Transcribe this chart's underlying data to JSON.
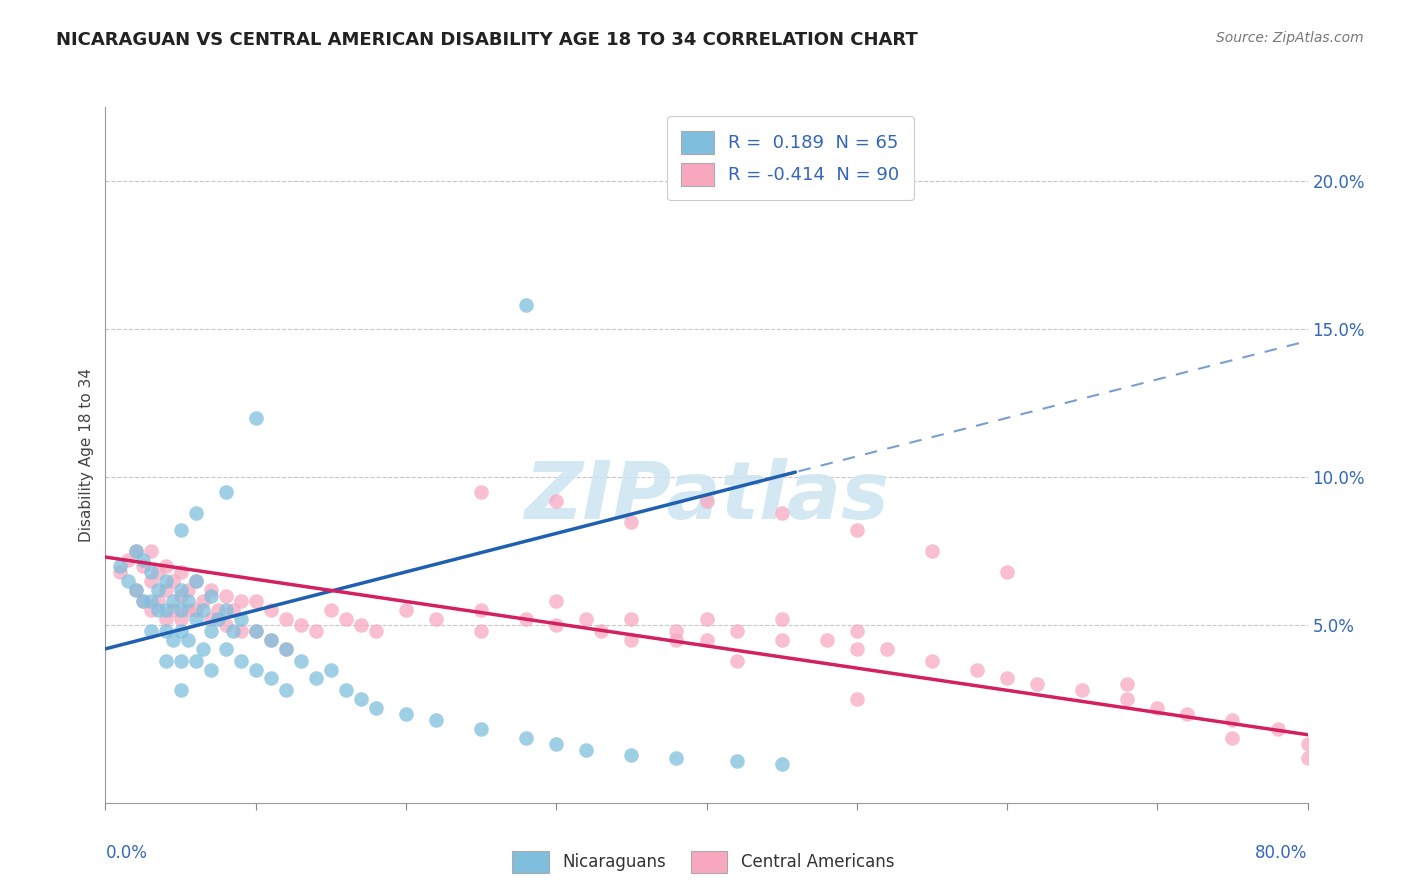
{
  "title": "NICARAGUAN VS CENTRAL AMERICAN DISABILITY AGE 18 TO 34 CORRELATION CHART",
  "source": "Source: ZipAtlas.com",
  "ylabel": "Disability Age 18 to 34",
  "ytick_labels": [
    "5.0%",
    "10.0%",
    "15.0%",
    "20.0%"
  ],
  "ytick_values": [
    0.05,
    0.1,
    0.15,
    0.2
  ],
  "xlim": [
    0.0,
    0.8
  ],
  "ylim": [
    -0.01,
    0.225
  ],
  "legend_r1": "R =  0.189  N = 65",
  "legend_r2": "R = -0.414  N = 90",
  "blue_color": "#7fbfdd",
  "pink_color": "#f7a8bf",
  "blue_line_color": "#2060b0",
  "pink_line_color": "#d42060",
  "nic_x": [
    0.01,
    0.015,
    0.02,
    0.02,
    0.025,
    0.025,
    0.03,
    0.03,
    0.03,
    0.035,
    0.035,
    0.04,
    0.04,
    0.04,
    0.04,
    0.045,
    0.045,
    0.05,
    0.05,
    0.05,
    0.05,
    0.05,
    0.055,
    0.055,
    0.06,
    0.06,
    0.06,
    0.065,
    0.065,
    0.07,
    0.07,
    0.07,
    0.075,
    0.08,
    0.08,
    0.085,
    0.09,
    0.09,
    0.1,
    0.1,
    0.11,
    0.11,
    0.12,
    0.12,
    0.13,
    0.14,
    0.15,
    0.16,
    0.17,
    0.18,
    0.2,
    0.22,
    0.25,
    0.28,
    0.3,
    0.32,
    0.35,
    0.38,
    0.42,
    0.45,
    0.28,
    0.1,
    0.08,
    0.06,
    0.05
  ],
  "nic_y": [
    0.07,
    0.065,
    0.075,
    0.062,
    0.072,
    0.058,
    0.068,
    0.058,
    0.048,
    0.062,
    0.055,
    0.065,
    0.055,
    0.048,
    0.038,
    0.058,
    0.045,
    0.062,
    0.055,
    0.048,
    0.038,
    0.028,
    0.058,
    0.045,
    0.065,
    0.052,
    0.038,
    0.055,
    0.042,
    0.06,
    0.048,
    0.035,
    0.052,
    0.055,
    0.042,
    0.048,
    0.052,
    0.038,
    0.048,
    0.035,
    0.045,
    0.032,
    0.042,
    0.028,
    0.038,
    0.032,
    0.035,
    0.028,
    0.025,
    0.022,
    0.02,
    0.018,
    0.015,
    0.012,
    0.01,
    0.008,
    0.006,
    0.005,
    0.004,
    0.003,
    0.158,
    0.12,
    0.095,
    0.088,
    0.082
  ],
  "ca_x": [
    0.01,
    0.015,
    0.02,
    0.02,
    0.025,
    0.025,
    0.03,
    0.03,
    0.03,
    0.035,
    0.035,
    0.04,
    0.04,
    0.04,
    0.045,
    0.045,
    0.05,
    0.05,
    0.05,
    0.055,
    0.055,
    0.06,
    0.06,
    0.065,
    0.07,
    0.07,
    0.075,
    0.08,
    0.08,
    0.085,
    0.09,
    0.09,
    0.1,
    0.1,
    0.11,
    0.11,
    0.12,
    0.12,
    0.13,
    0.14,
    0.15,
    0.16,
    0.17,
    0.18,
    0.2,
    0.22,
    0.25,
    0.25,
    0.28,
    0.3,
    0.3,
    0.32,
    0.33,
    0.35,
    0.35,
    0.38,
    0.4,
    0.4,
    0.42,
    0.45,
    0.45,
    0.48,
    0.5,
    0.5,
    0.52,
    0.55,
    0.58,
    0.6,
    0.62,
    0.65,
    0.68,
    0.7,
    0.72,
    0.75,
    0.78,
    0.8,
    0.25,
    0.3,
    0.35,
    0.4,
    0.45,
    0.5,
    0.55,
    0.6,
    0.68,
    0.75,
    0.8,
    0.38,
    0.42,
    0.5
  ],
  "ca_y": [
    0.068,
    0.072,
    0.075,
    0.062,
    0.07,
    0.058,
    0.075,
    0.065,
    0.055,
    0.068,
    0.058,
    0.07,
    0.062,
    0.052,
    0.065,
    0.055,
    0.068,
    0.06,
    0.052,
    0.062,
    0.055,
    0.065,
    0.055,
    0.058,
    0.062,
    0.052,
    0.055,
    0.06,
    0.05,
    0.055,
    0.058,
    0.048,
    0.058,
    0.048,
    0.055,
    0.045,
    0.052,
    0.042,
    0.05,
    0.048,
    0.055,
    0.052,
    0.05,
    0.048,
    0.055,
    0.052,
    0.055,
    0.048,
    0.052,
    0.058,
    0.05,
    0.052,
    0.048,
    0.052,
    0.045,
    0.048,
    0.052,
    0.045,
    0.048,
    0.052,
    0.045,
    0.045,
    0.048,
    0.042,
    0.042,
    0.038,
    0.035,
    0.032,
    0.03,
    0.028,
    0.025,
    0.022,
    0.02,
    0.018,
    0.015,
    0.01,
    0.095,
    0.092,
    0.085,
    0.092,
    0.088,
    0.082,
    0.075,
    0.068,
    0.03,
    0.012,
    0.005,
    0.045,
    0.038,
    0.025
  ],
  "nic_line_solid_xmax": 0.46,
  "nic_line_intercept": 0.042,
  "nic_line_slope": 0.13,
  "ca_line_intercept": 0.073,
  "ca_line_slope": -0.075
}
